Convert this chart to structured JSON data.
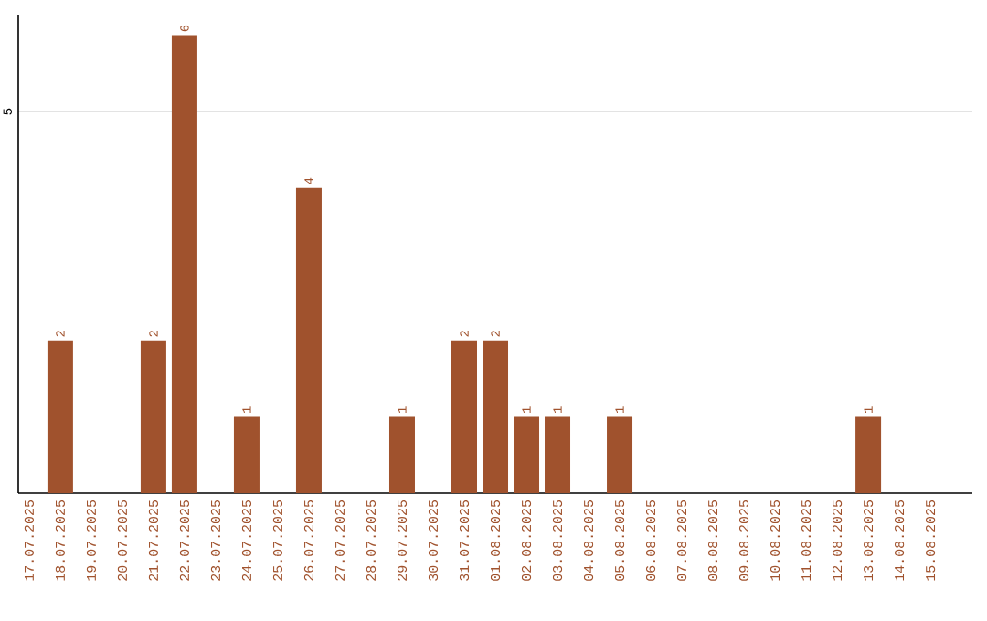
{
  "chart_data": {
    "type": "bar",
    "categories": [
      "17.07.2025",
      "18.07.2025",
      "19.07.2025",
      "20.07.2025",
      "21.07.2025",
      "22.07.2025",
      "23.07.2025",
      "24.07.2025",
      "25.07.2025",
      "26.07.2025",
      "27.07.2025",
      "28.07.2025",
      "29.07.2025",
      "30.07.2025",
      "31.07.2025",
      "01.08.2025",
      "02.08.2025",
      "03.08.2025",
      "04.08.2025",
      "05.08.2025",
      "06.08.2025",
      "07.08.2025",
      "08.08.2025",
      "09.08.2025",
      "10.08.2025",
      "11.08.2025",
      "12.08.2025",
      "13.08.2025",
      "14.08.2025",
      "15.08.2025"
    ],
    "values": [
      0,
      2,
      0,
      0,
      2,
      6,
      0,
      1,
      0,
      4,
      0,
      0,
      1,
      0,
      2,
      2,
      1,
      1,
      0,
      1,
      0,
      0,
      0,
      0,
      0,
      0,
      0,
      1,
      0,
      0
    ],
    "value_labels": [
      null,
      "2",
      null,
      null,
      "2",
      "6",
      null,
      "1",
      null,
      "4",
      null,
      null,
      "1",
      null,
      "2",
      "2",
      "1",
      "1",
      null,
      "1",
      null,
      null,
      null,
      null,
      null,
      null,
      null,
      "1",
      null,
      null
    ],
    "color": "#a0522d",
    "ylim": [
      0,
      6.27
    ],
    "yticks": [
      5
    ],
    "grid": "y"
  }
}
